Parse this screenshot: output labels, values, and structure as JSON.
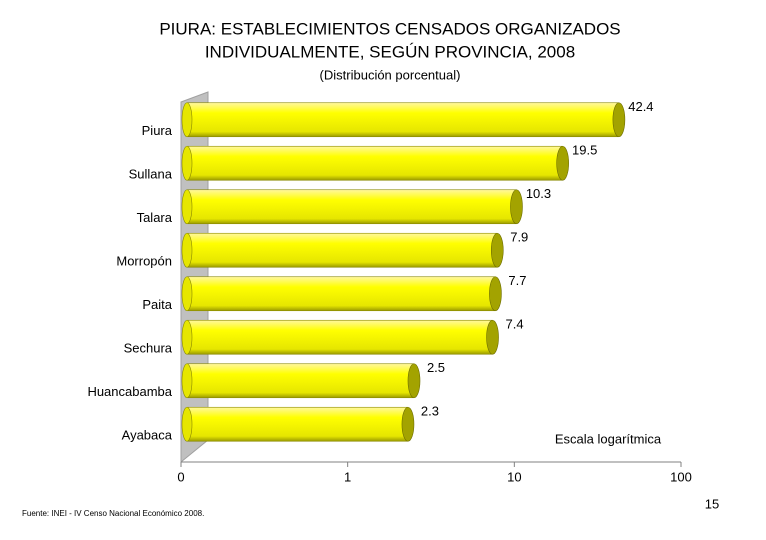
{
  "chart_data": {
    "type": "bar",
    "orientation": "horizontal",
    "title": [
      "PIURA: ESTABLECIMIENTOS CENSADOS ORGANIZADOS",
      "INDIVIDUALMENTE, SEGÚN PROVINCIA, 2008"
    ],
    "subtitle": "(Distribución porcentual)",
    "categories": [
      "Piura",
      "Sullana",
      "Talara",
      "Morropón",
      "Paita",
      "Sechura",
      "Huancabamba",
      "Ayabaca"
    ],
    "values": [
      42.4,
      19.5,
      10.3,
      7.9,
      7.7,
      7.4,
      2.5,
      2.3
    ],
    "color": "#ffff00",
    "x_log_scale": true,
    "xlim": [
      0.1,
      100
    ],
    "xticks": [
      {
        "value": 0.1,
        "label": "0"
      },
      1,
      10,
      100
    ],
    "annotations": [
      "Escala logarítmica"
    ],
    "source": "Fuente: INEI - IV Censo Nacional Económico 2008.",
    "page_number": "15"
  }
}
